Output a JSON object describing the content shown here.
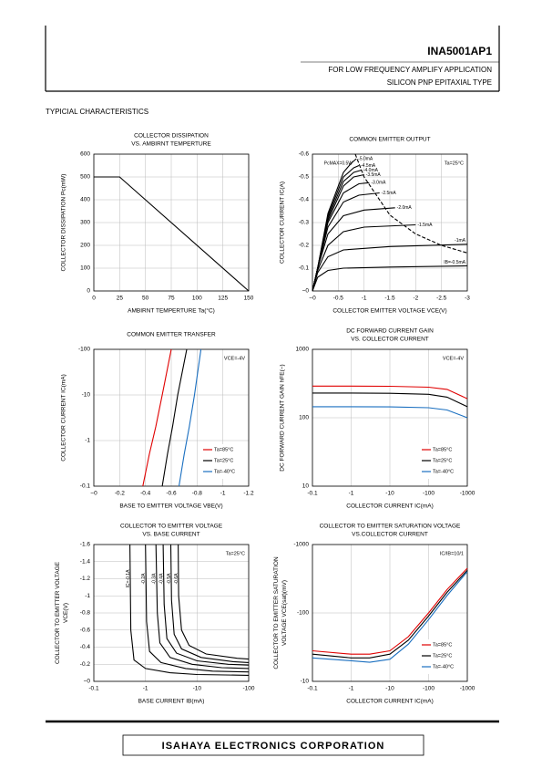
{
  "header": {
    "part": "INA5001AP1",
    "line1": "FOR LOW FREQUENCY AMPLIFY APPLICATION",
    "line2": "SILICON PNP EPITAXIAL TYPE"
  },
  "section_title": "TYPICIAL  CHARACTERISTICS",
  "footer": "ISAHAYA ELECTRONICS CORPORATION",
  "chart_data": [
    {
      "type": "line",
      "title": "COLLECTOR DISSIPATION",
      "subtitle": "VS. AMBIRNT TEMPERTURE",
      "x_label": "AMBIRNT TEMPERTURE  Ta(°C)",
      "y_label": "COLLECTOR DISSIPATION  Pc(mW)",
      "xlim": [
        0,
        150
      ],
      "xticks": [
        0,
        25,
        50,
        75,
        100,
        125,
        150
      ],
      "ylim": [
        0,
        600
      ],
      "yticks": [
        0,
        100,
        200,
        300,
        400,
        500,
        600
      ],
      "grid": true,
      "series": [
        {
          "color": "#000000",
          "x": [
            0,
            25,
            150
          ],
          "values": [
            500,
            500,
            0
          ]
        }
      ]
    },
    {
      "type": "line",
      "title": "COMMON EMITTER OUTPUT",
      "x_label": "COLLECTOR EMITTER VOLTAGE  VCE(V)",
      "y_label": "COLLECTOR CURRENT  IC(A)",
      "xlim": [
        0,
        -3
      ],
      "xticks": [
        {
          "value": 0,
          "label": "−0"
        },
        -0.5,
        -1,
        -1.5,
        -2,
        -2.5,
        -3
      ],
      "ylim": [
        0,
        -0.6
      ],
      "yticks": [
        {
          "value": 0,
          "label": "−0"
        },
        -0.1,
        -0.2,
        -0.3,
        -0.4,
        -0.5,
        -0.6
      ],
      "grid": true,
      "notes": [
        "Ta=25°C"
      ],
      "legend": "inline",
      "series": [
        {
          "name": "IB=-0.5mA",
          "color": "#000000",
          "x": [
            0,
            -0.1,
            -0.3,
            -0.6,
            -1.5,
            -3
          ],
          "values": [
            0,
            -0.06,
            -0.09,
            -0.1,
            -0.105,
            -0.11
          ]
        },
        {
          "name": "-1mA",
          "color": "#000000",
          "x": [
            0,
            -0.1,
            -0.3,
            -0.6,
            -1.5,
            -3
          ],
          "values": [
            0,
            -0.08,
            -0.15,
            -0.18,
            -0.195,
            -0.205
          ]
        },
        {
          "name": "-1.5mA",
          "color": "#000000",
          "x": [
            0,
            -0.1,
            -0.3,
            -0.6,
            -1,
            -2
          ],
          "values": [
            0,
            -0.09,
            -0.2,
            -0.26,
            -0.28,
            -0.29
          ]
        },
        {
          "name": "-2.0mA",
          "color": "#000000",
          "x": [
            0,
            -0.1,
            -0.3,
            -0.6,
            -1,
            -1.6
          ],
          "values": [
            0,
            -0.1,
            -0.25,
            -0.33,
            -0.355,
            -0.365
          ]
        },
        {
          "name": "-2.5mA",
          "color": "#000000",
          "x": [
            0,
            -0.1,
            -0.3,
            -0.6,
            -0.9,
            -1.3
          ],
          "values": [
            0,
            -0.1,
            -0.28,
            -0.39,
            -0.42,
            -0.43
          ]
        },
        {
          "name": "-3.0mA",
          "color": "#000000",
          "x": [
            0,
            -0.1,
            -0.3,
            -0.6,
            -0.9,
            -1.1
          ],
          "values": [
            0,
            -0.1,
            -0.3,
            -0.43,
            -0.47,
            -0.475
          ]
        },
        {
          "name": "-3.5mA",
          "color": "#000000",
          "x": [
            0,
            -0.1,
            -0.3,
            -0.6,
            -0.8,
            -1
          ],
          "values": [
            0,
            -0.1,
            -0.31,
            -0.46,
            -0.5,
            -0.51
          ]
        },
        {
          "name": "-4.0mA",
          "color": "#000000",
          "x": [
            0,
            -0.1,
            -0.3,
            -0.6,
            -0.8,
            -0.95
          ],
          "values": [
            0,
            -0.1,
            -0.32,
            -0.48,
            -0.52,
            -0.53
          ]
        },
        {
          "name": "-4.5mA",
          "color": "#000000",
          "x": [
            0,
            -0.1,
            -0.3,
            -0.6,
            -0.8,
            -0.9
          ],
          "values": [
            0,
            -0.1,
            -0.33,
            -0.5,
            -0.54,
            -0.55
          ]
        },
        {
          "name": "-5.0mA",
          "color": "#000000",
          "x": [
            0,
            -0.1,
            -0.3,
            -0.6,
            -0.75,
            -0.85
          ],
          "values": [
            0,
            -0.1,
            -0.34,
            -0.52,
            -0.56,
            -0.58
          ]
        },
        {
          "name": "PcMAX=0.5W",
          "color": "#000000",
          "dashed": true,
          "x": [
            -0.83,
            -1,
            -1.5,
            -2,
            -2.5,
            -3
          ],
          "values": [
            -0.6,
            -0.5,
            -0.333,
            -0.25,
            -0.2,
            -0.167
          ]
        }
      ]
    },
    {
      "type": "line",
      "title": "COMMON EMITTER TRANSFER",
      "x_label": "BASE TO EMITTER VOLTAGE  VBE(V)",
      "y_label": "COLLECTOR CURRENT  IC(mA)",
      "xlim": [
        0,
        -1.2
      ],
      "xticks": [
        {
          "value": 0,
          "label": "−0"
        },
        -0.2,
        -0.4,
        -0.6,
        -0.8,
        -1,
        -1.2
      ],
      "ylim": [
        -0.1,
        -100
      ],
      "ylog": true,
      "yticks": [
        -0.1,
        -1,
        -10,
        -100
      ],
      "grid": true,
      "notes": [
        "VCE=-4V"
      ],
      "legend": "lower right",
      "series": [
        {
          "name": "Ta=85°C",
          "color": "#e00000",
          "x": [
            -0.38,
            -0.43,
            -0.48,
            -0.53,
            -0.6
          ],
          "values": [
            -0.1,
            -0.5,
            -2,
            -10,
            -100
          ]
        },
        {
          "name": "Ta=25°C",
          "color": "#000000",
          "x": [
            -0.53,
            -0.57,
            -0.61,
            -0.65,
            -0.72
          ],
          "values": [
            -0.1,
            -0.5,
            -2,
            -10,
            -100
          ]
        },
        {
          "name": "Ta=-40°C",
          "color": "#1a6fc0",
          "x": [
            -0.66,
            -0.7,
            -0.74,
            -0.78,
            -0.83
          ],
          "values": [
            -0.1,
            -0.5,
            -2,
            -10,
            -100
          ]
        }
      ]
    },
    {
      "type": "line",
      "title": "DC FORWARD CURRENT GAIN",
      "subtitle": "VS. COLLECTOR CURRENT",
      "x_label": "COLLECTOR CURRENT  IC(mA)",
      "y_label": "DC FORWARD CURRENT GAIN  hFE(−)",
      "xlim": [
        -0.1,
        -1000
      ],
      "xlog": true,
      "xticks": [
        -0.1,
        -1,
        -10,
        -100,
        -1000
      ],
      "ylim": [
        10,
        1000
      ],
      "ylog": true,
      "yticks": [
        10,
        100,
        1000
      ],
      "grid": true,
      "notes": [
        "VCE=-4V"
      ],
      "legend": "lower right",
      "series": [
        {
          "name": "Ta=85°C",
          "color": "#e00000",
          "x": [
            -0.1,
            -1,
            -10,
            -100,
            -300,
            -1000
          ],
          "values": [
            290,
            290,
            288,
            280,
            260,
            190
          ]
        },
        {
          "name": "Ta=25°C",
          "color": "#000000",
          "x": [
            -0.1,
            -1,
            -10,
            -100,
            -300,
            -1000
          ],
          "values": [
            230,
            230,
            228,
            220,
            200,
            145
          ]
        },
        {
          "name": "Ta=-40°C",
          "color": "#1a6fc0",
          "x": [
            -0.1,
            -1,
            -10,
            -100,
            -300,
            -1000
          ],
          "values": [
            145,
            145,
            144,
            140,
            130,
            100
          ]
        }
      ]
    },
    {
      "type": "line",
      "title": "COLLECTOR TO EMITTER VOLTAGE",
      "subtitle": "VS. BASE CURRENT",
      "x_label": "BASE CURRENT  IB(mA)",
      "y_label": [
        "COLLECTOR TO EMITTER VOLTAGE",
        "VCE(V)"
      ],
      "xlim": [
        -0.1,
        -100
      ],
      "xlog": true,
      "xticks": [
        -0.1,
        -1,
        -10,
        -100
      ],
      "ylim": [
        0,
        -1.6
      ],
      "yticks": [
        {
          "value": 0,
          "label": "−0"
        },
        -0.2,
        -0.4,
        -0.6,
        -0.8,
        -1,
        -1.2,
        -1.4,
        -1.6
      ],
      "grid": true,
      "notes": [
        "Ta=25°C"
      ],
      "legend": "inline",
      "series": [
        {
          "name": "IC=-0.1A",
          "color": "#000000",
          "x": [
            -0.5,
            -0.52,
            -0.6,
            -1,
            -3,
            -10,
            -100
          ],
          "values": [
            -1.6,
            -0.6,
            -0.25,
            -0.15,
            -0.1,
            -0.08,
            -0.07
          ]
        },
        {
          "name": "-0.2A",
          "color": "#000000",
          "x": [
            -1,
            -1.05,
            -1.2,
            -2,
            -6,
            -20,
            -100
          ],
          "values": [
            -1.6,
            -0.7,
            -0.35,
            -0.22,
            -0.15,
            -0.12,
            -0.11
          ]
        },
        {
          "name": "-0.3A",
          "color": "#000000",
          "x": [
            -1.6,
            -1.7,
            -1.9,
            -3,
            -8,
            -30,
            -100
          ],
          "values": [
            -1.6,
            -0.8,
            -0.45,
            -0.28,
            -0.2,
            -0.16,
            -0.15
          ]
        },
        {
          "name": "-0.4A",
          "color": "#000000",
          "x": [
            -2.2,
            -2.3,
            -2.6,
            -4,
            -10,
            -40,
            -100
          ],
          "values": [
            -1.6,
            -0.9,
            -0.5,
            -0.33,
            -0.24,
            -0.2,
            -0.19
          ]
        },
        {
          "name": "-0.5A",
          "color": "#000000",
          "x": [
            -3.1,
            -3.2,
            -3.6,
            -5,
            -12,
            -50,
            -100
          ],
          "values": [
            -1.6,
            -0.95,
            -0.55,
            -0.38,
            -0.28,
            -0.23,
            -0.22
          ]
        },
        {
          "name": "-0.6A",
          "color": "#000000",
          "x": [
            -4.3,
            -4.4,
            -5,
            -7,
            -15,
            -60,
            -100
          ],
          "values": [
            -1.6,
            -1,
            -0.6,
            -0.42,
            -0.32,
            -0.27,
            -0.26
          ]
        }
      ]
    },
    {
      "type": "line",
      "title": "COLLECTOR TO EMITTER SATURATION VOLTAGE",
      "subtitle": "VS.COLLECTOR CURRENT",
      "x_label": "COLLECTOR CURRENT  IC(mA)",
      "y_label": [
        "COLLECTOR TO EMITTER SATURATION",
        "VOLTAGE  VCE(sat)(mV)"
      ],
      "xlim": [
        -0.1,
        -1000
      ],
      "xlog": true,
      "xticks": [
        -0.1,
        -1,
        -10,
        -100,
        -1000
      ],
      "ylim": [
        -10,
        -1000
      ],
      "ylog": true,
      "yticks": [
        -10,
        -100,
        -1000
      ],
      "grid": true,
      "notes": [
        "IC/IB=10/1"
      ],
      "legend": "lower right",
      "series": [
        {
          "name": "Ta=85°C",
          "color": "#e00000",
          "x": [
            -0.1,
            -1,
            -3,
            -10,
            -30,
            -100,
            -300,
            -1000
          ],
          "values": [
            -28,
            -25,
            -25,
            -28,
            -45,
            -100,
            -220,
            -450
          ]
        },
        {
          "name": "Ta=25°C",
          "color": "#000000",
          "x": [
            -0.1,
            -1,
            -3,
            -10,
            -30,
            -100,
            -300,
            -1000
          ],
          "values": [
            -25,
            -22,
            -22,
            -25,
            -40,
            -90,
            -200,
            -420
          ]
        },
        {
          "name": "Ta=-40°C",
          "color": "#1a6fc0",
          "x": [
            -0.1,
            -1,
            -3,
            -10,
            -30,
            -100,
            -300,
            -1000
          ],
          "values": [
            -22,
            -20,
            -19,
            -21,
            -35,
            -80,
            -180,
            -400
          ]
        }
      ]
    }
  ]
}
